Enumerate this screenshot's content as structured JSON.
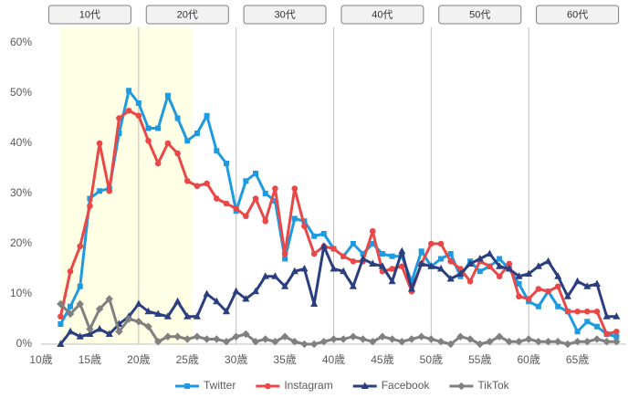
{
  "chart_data": {
    "type": "line",
    "group_labels": [
      "10代",
      "20代",
      "30代",
      "40代",
      "50代",
      "60代"
    ],
    "highlight_x": [
      12,
      25.5
    ],
    "x": [
      12,
      13,
      14,
      15,
      16,
      17,
      18,
      19,
      20,
      21,
      22,
      23,
      24,
      25,
      26,
      27,
      28,
      29,
      30,
      31,
      32,
      33,
      34,
      35,
      36,
      37,
      38,
      39,
      40,
      41,
      42,
      43,
      44,
      45,
      46,
      47,
      48,
      49,
      50,
      51,
      52,
      53,
      54,
      55,
      56,
      57,
      58,
      59,
      60,
      61,
      62,
      63,
      64,
      65,
      66,
      67,
      68,
      69
    ],
    "series": [
      {
        "name": "Twitter",
        "color": "#1e9be0",
        "marker": "square",
        "values": [
          4,
          7.5,
          11.5,
          29,
          30.5,
          31,
          42,
          50.5,
          48,
          43,
          43,
          49.5,
          45,
          40.5,
          42,
          45.5,
          38.5,
          36,
          26.5,
          32.5,
          34,
          30,
          28.5,
          17,
          25,
          24.5,
          21.5,
          22,
          19,
          17.5,
          20,
          18,
          20,
          18,
          17.5,
          17.5,
          12.5,
          18.5,
          15.5,
          17,
          18,
          13.5,
          16.5,
          14.5,
          15.5,
          17,
          15,
          12,
          8.5,
          7.5,
          10.5,
          7.5,
          6.5,
          2.5,
          4.5,
          3.5,
          2,
          1.5
        ]
      },
      {
        "name": "Instagram",
        "color": "#e84848",
        "marker": "circle",
        "values": [
          5.5,
          14.5,
          19.5,
          27.5,
          40,
          30.5,
          45,
          46.5,
          45.5,
          40.5,
          36,
          40,
          38,
          32.5,
          31.5,
          32,
          29,
          28,
          27,
          25.5,
          29,
          24.5,
          31,
          18,
          31,
          23.5,
          18,
          19.5,
          19,
          17.5,
          16.5,
          16.5,
          22.5,
          14.5,
          15,
          15.5,
          10.5,
          16,
          20,
          20,
          16.5,
          15,
          12.5,
          16.5,
          15.5,
          13.5,
          16,
          9.5,
          9,
          11,
          10.5,
          11.5,
          6.5,
          6.5,
          6.5,
          6.5,
          2,
          2.5
        ]
      },
      {
        "name": "Facebook",
        "color": "#2b3f80",
        "marker": "triangle",
        "values": [
          0,
          2.5,
          1.5,
          2,
          3,
          2,
          4,
          5.5,
          8,
          6.5,
          6,
          5.5,
          8.5,
          5.5,
          5.5,
          10,
          8.5,
          6.5,
          10.5,
          9,
          10.5,
          13.5,
          13.5,
          11.5,
          14.5,
          15,
          8,
          19.5,
          15,
          14.5,
          11.5,
          17,
          16,
          15.5,
          12.5,
          18.5,
          11,
          16,
          15.5,
          15,
          13,
          14,
          16,
          17,
          18,
          15.5,
          15,
          13.5,
          14,
          15.5,
          16.5,
          13.5,
          9.5,
          12.5,
          11.5,
          12,
          5.5,
          5.5
        ]
      },
      {
        "name": "TikTok",
        "color": "#808080",
        "marker": "diamond",
        "values": [
          8,
          6,
          8,
          3,
          7,
          9,
          2.5,
          5,
          4.5,
          3.5,
          0.5,
          1.5,
          1.5,
          1,
          1.5,
          1,
          1,
          0.5,
          1.5,
          2,
          0.5,
          1,
          0.5,
          1.5,
          0.5,
          0,
          0,
          0.5,
          1,
          1,
          1.5,
          1,
          0.5,
          1.5,
          1,
          0.5,
          1,
          1.5,
          1,
          0.5,
          0,
          1.5,
          1,
          0,
          0.5,
          1.5,
          0.5,
          0.5,
          1,
          0.5,
          0.5,
          0.5,
          0,
          0.5,
          0.5,
          1,
          0.5,
          0.5
        ]
      }
    ],
    "xlim": [
      10,
      70
    ],
    "xticks": [
      {
        "value": 10,
        "label": "10歳"
      },
      {
        "value": 15,
        "label": "15歳"
      },
      {
        "value": 20,
        "label": "20歳"
      },
      {
        "value": 25,
        "label": "25歳"
      },
      {
        "value": 30,
        "label": "30歳"
      },
      {
        "value": 35,
        "label": "35歳"
      },
      {
        "value": 40,
        "label": "40歳"
      },
      {
        "value": 45,
        "label": "45歳"
      },
      {
        "value": 50,
        "label": "50歳"
      },
      {
        "value": 55,
        "label": "55歳"
      },
      {
        "value": 60,
        "label": "60歳"
      },
      {
        "value": 65,
        "label": "65歳"
      }
    ],
    "ylim": [
      0,
      60
    ],
    "yticks": [
      {
        "value": 0,
        "label": "0%"
      },
      {
        "value": 10,
        "label": "10%"
      },
      {
        "value": 20,
        "label": "20%"
      },
      {
        "value": 30,
        "label": "30%"
      },
      {
        "value": 40,
        "label": "40%"
      },
      {
        "value": 50,
        "label": "50%"
      },
      {
        "value": 60,
        "label": "60%"
      }
    ],
    "legend": "bottom"
  }
}
